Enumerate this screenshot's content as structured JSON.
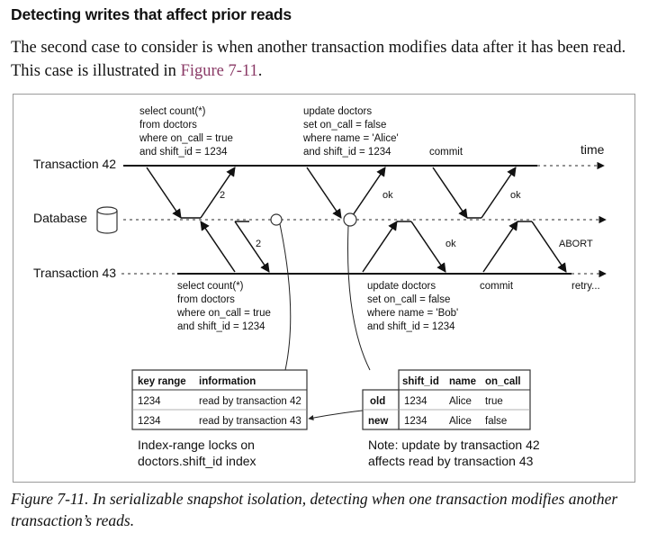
{
  "heading": "Detecting writes that affect prior reads",
  "paragraph": {
    "text_before": "The second case to consider is when another transaction modifies data after it has been read. This case is illustrated in ",
    "link": "Figure 7-11",
    "text_after": "."
  },
  "figure": {
    "lanes": {
      "t42": "Transaction 42",
      "db": "Database",
      "t43": "Transaction 43"
    },
    "time_label": "time",
    "t42_query": [
      "select count(*)",
      "from doctors",
      "where on_call = true",
      "and shift_id = 1234"
    ],
    "t42_update": [
      "update doctors",
      "set on_call = false",
      "where name = 'Alice'",
      "and shift_id = 1234"
    ],
    "t42_commit": "commit",
    "t43_query": [
      "select count(*)",
      "from doctors",
      "where on_call = true",
      "and shift_id = 1234"
    ],
    "t43_update": [
      "update doctors",
      "set on_call = false",
      "where name = 'Bob'",
      "and shift_id = 1234"
    ],
    "t43_commit": "commit",
    "retry": "retry...",
    "abort": "ABORT",
    "arrow_labels": {
      "a1": "2",
      "a2": "ok",
      "a3": "ok",
      "b1": "2",
      "b2": "ok"
    },
    "locks_table": {
      "headers": [
        "key range",
        "information"
      ],
      "rows": [
        [
          "1234",
          "read by transaction 42"
        ],
        [
          "1234",
          "read by transaction 43"
        ]
      ]
    },
    "locks_caption": [
      "Index-range locks on",
      "doctors.shift_id index"
    ],
    "rows_table": {
      "headers": [
        "",
        "shift_id",
        "name",
        "on_call"
      ],
      "rows": [
        [
          "old",
          "1234",
          "Alice",
          "true"
        ],
        [
          "new",
          "1234",
          "Alice",
          "false"
        ]
      ]
    },
    "note": [
      "Note: update by transaction 42",
      "affects read by transaction 43"
    ]
  },
  "caption": "Figure 7-11. In serializable snapshot isolation, detecting when one transaction modifies another transaction’s reads."
}
